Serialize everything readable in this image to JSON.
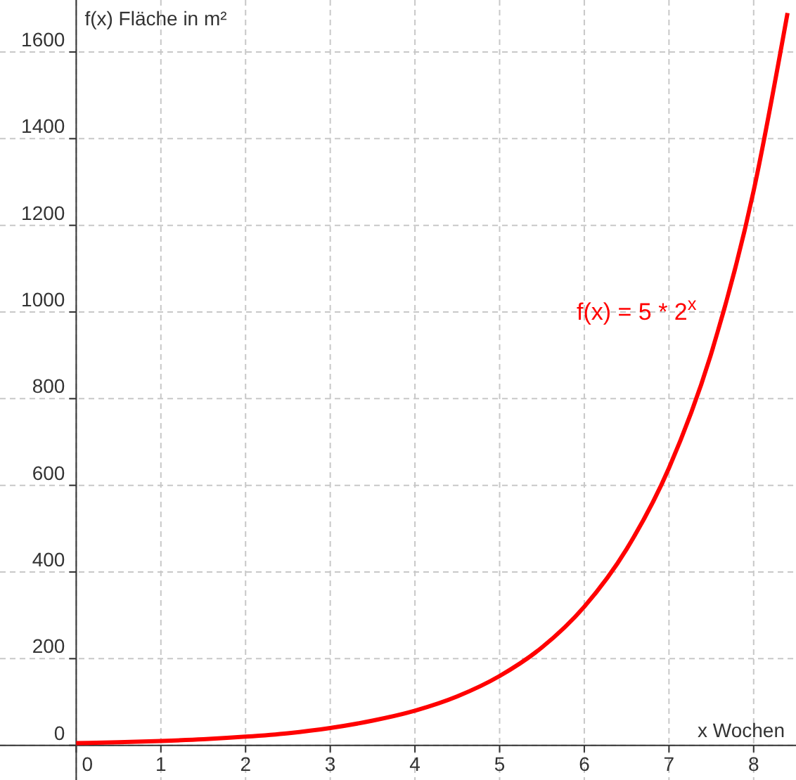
{
  "chart_data": {
    "type": "line",
    "xlabel": "x Wochen",
    "ylabel": "f(x) Fläche in m²",
    "series": [
      {
        "color": "#ff0000",
        "x": [
          0,
          0.5,
          1,
          1.5,
          2,
          2.5,
          3,
          3.5,
          4,
          4.5,
          5,
          5.5,
          6,
          6.5,
          7,
          7.5,
          8,
          8.4
        ],
        "values": [
          5,
          7,
          10,
          14,
          20,
          28,
          40,
          57,
          80,
          113,
          160,
          226,
          320,
          453,
          640,
          905,
          1280,
          1690
        ]
      }
    ],
    "xlim": [
      -0.9,
      8.5
    ],
    "ylim": [
      -80,
      1720
    ],
    "xticks": [
      0,
      1,
      2,
      3,
      4,
      5,
      6,
      7,
      8
    ],
    "yticks": [
      0,
      200,
      400,
      600,
      800,
      1000,
      1200,
      1400,
      1600
    ],
    "grid": true,
    "marker": "none",
    "line_style": "solid",
    "annotations": [
      "f(x) = 5 * 2$^{x}$"
    ]
  }
}
